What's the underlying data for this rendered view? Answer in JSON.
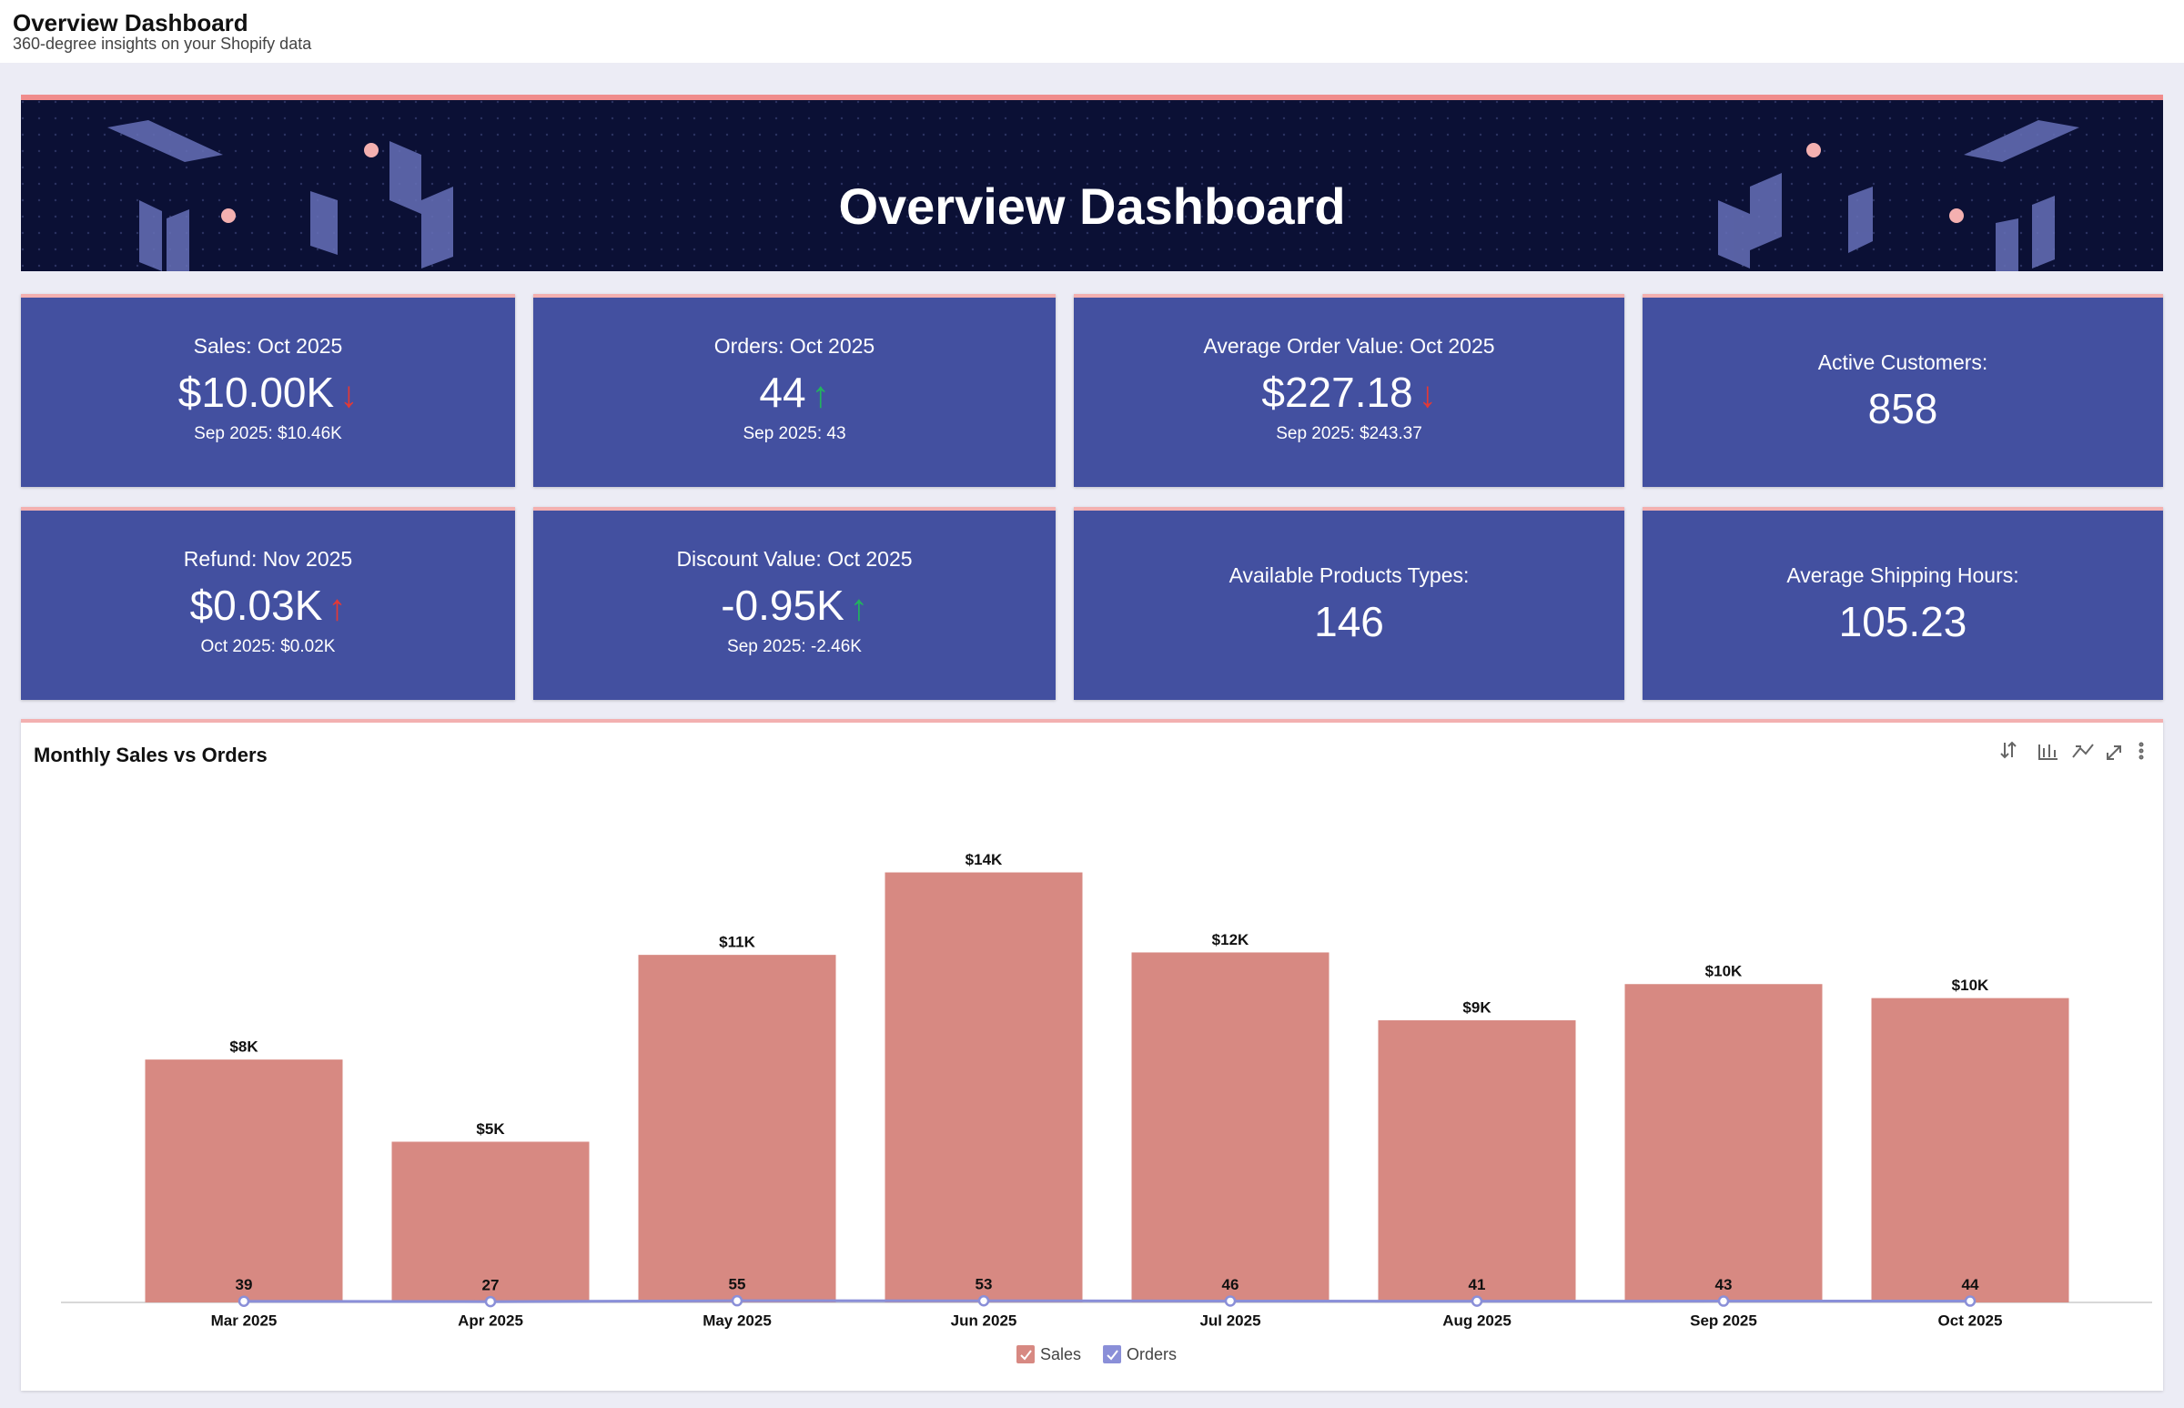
{
  "header": {
    "title": "Overview Dashboard",
    "subtitle": "360-degree insights on your Shopify data"
  },
  "banner": {
    "title": "Overview Dashboard"
  },
  "kpis": [
    {
      "title": "Sales: Oct 2025",
      "value": "$10.00K",
      "trend": "down",
      "trend_color": "#e53935",
      "previous": "Sep 2025: $10.46K"
    },
    {
      "title": "Orders: Oct 2025",
      "value": "44",
      "trend": "up",
      "trend_color": "#22b35e",
      "previous": "Sep 2025: 43"
    },
    {
      "title": "Average Order Value: Oct 2025",
      "value": "$227.18",
      "trend": "down",
      "trend_color": "#e53935",
      "previous": "Sep 2025: $243.37"
    },
    {
      "title": "Active Customers:",
      "value": "858"
    },
    {
      "title": "Refund: Nov 2025",
      "value": "$0.03K",
      "trend": "up",
      "trend_color": "#e53935",
      "previous": "Oct 2025: $0.02K"
    },
    {
      "title": "Discount Value: Oct 2025",
      "value": "-0.95K",
      "trend": "up",
      "trend_color": "#22b35e",
      "previous": "Sep 2025: -2.46K"
    },
    {
      "title": "Available Products Types:",
      "value": "146"
    },
    {
      "title": "Average Shipping Hours:",
      "value": "105.23"
    }
  ],
  "chart_data": {
    "type": "combo",
    "title": "Monthly Sales vs Orders",
    "categories": [
      "Mar 2025",
      "Apr 2025",
      "May 2025",
      "Jun 2025",
      "Jul 2025",
      "Aug 2025",
      "Sep 2025",
      "Oct 2025"
    ],
    "series": [
      {
        "name": "Sales",
        "type": "bar",
        "color": "#d78982",
        "values": [
          7980,
          5280,
          11420,
          14130,
          11500,
          9270,
          10460,
          10000
        ],
        "value_labels": [
          "$8K",
          "$5K",
          "$11K",
          "$14K",
          "$12K",
          "$9K",
          "$10K",
          "$10K"
        ]
      },
      {
        "name": "Orders",
        "type": "line",
        "color": "#8a8fd8",
        "values": [
          39,
          27,
          55,
          53,
          46,
          41,
          43,
          44
        ]
      }
    ],
    "ylim": [
      0,
      16000
    ]
  }
}
